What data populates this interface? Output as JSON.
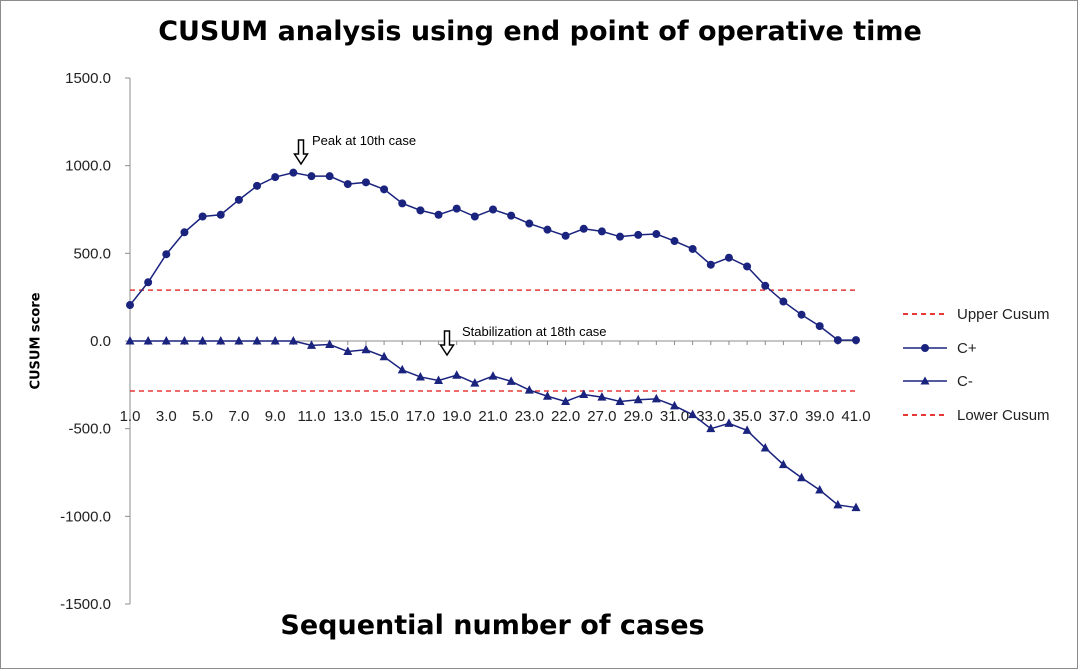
{
  "chart_data": {
    "type": "line",
    "title": "CUSUM analysis using end point of operative time",
    "xlabel": "Sequential number of cases",
    "ylabel": "CUSUM score",
    "ylim": [
      -1500,
      1500
    ],
    "y_ticks": [
      "1500.0",
      "1000.0",
      "500.0",
      "0.0",
      "-500.0",
      "-1000.0",
      "-1500.0"
    ],
    "y_tick_values": [
      1500,
      1000,
      500,
      0,
      -500,
      -1000,
      -1500
    ],
    "x_ticks": [
      "1.0",
      "3.0",
      "5.0",
      "7.0",
      "9.0",
      "11.0",
      "13.0",
      "15.0",
      "17.0",
      "19.0",
      "21.0",
      "23.0",
      "22.0",
      "27.0",
      "29.0",
      "31.0",
      "33.0",
      "35.0",
      "37.0",
      "39.0",
      "41.0"
    ],
    "x": [
      1,
      2,
      3,
      4,
      5,
      6,
      7,
      8,
      9,
      10,
      11,
      12,
      13,
      14,
      15,
      16,
      17,
      18,
      19,
      20,
      21,
      22,
      23,
      24,
      25,
      26,
      27,
      28,
      29,
      30,
      31,
      32,
      33,
      34,
      35,
      36,
      37,
      38,
      39,
      40,
      41
    ],
    "series": [
      {
        "name": "C+",
        "color": "#1a237e",
        "marker": "circle",
        "values": [
          205,
          335,
          495,
          620,
          710,
          720,
          805,
          885,
          935,
          960,
          940,
          940,
          895,
          905,
          865,
          785,
          745,
          720,
          755,
          710,
          750,
          715,
          670,
          635,
          600,
          640,
          625,
          595,
          605,
          610,
          570,
          525,
          435,
          475,
          425,
          315,
          225,
          150,
          85,
          5,
          5
        ]
      },
      {
        "name": "C-",
        "color": "#1a237e",
        "marker": "triangle",
        "values": [
          0,
          0,
          0,
          0,
          0,
          0,
          0,
          0,
          0,
          0,
          -25,
          -20,
          -60,
          -50,
          -90,
          -165,
          -205,
          -225,
          -195,
          -240,
          -200,
          -230,
          -280,
          -315,
          -345,
          -305,
          -320,
          -345,
          -335,
          -330,
          -370,
          -420,
          -500,
          -470,
          -510,
          -610,
          -705,
          -780,
          -850,
          -935,
          -950
        ]
      }
    ],
    "reference_lines": [
      {
        "name": "Upper Cusum",
        "value": 290,
        "color": "#e53935",
        "style": "dashed"
      },
      {
        "name": "Lower Cusum",
        "value": -285,
        "color": "#e53935",
        "style": "dashed"
      }
    ],
    "legend_order": [
      "Upper Cusum",
      "C+",
      "C-",
      "Lower Cusum"
    ],
    "legend_position": "right",
    "annotations": [
      {
        "text": "Peak at 10th case",
        "x": 10
      },
      {
        "text": "Stabilization at 18th case",
        "x": 18
      }
    ],
    "grid": false
  }
}
